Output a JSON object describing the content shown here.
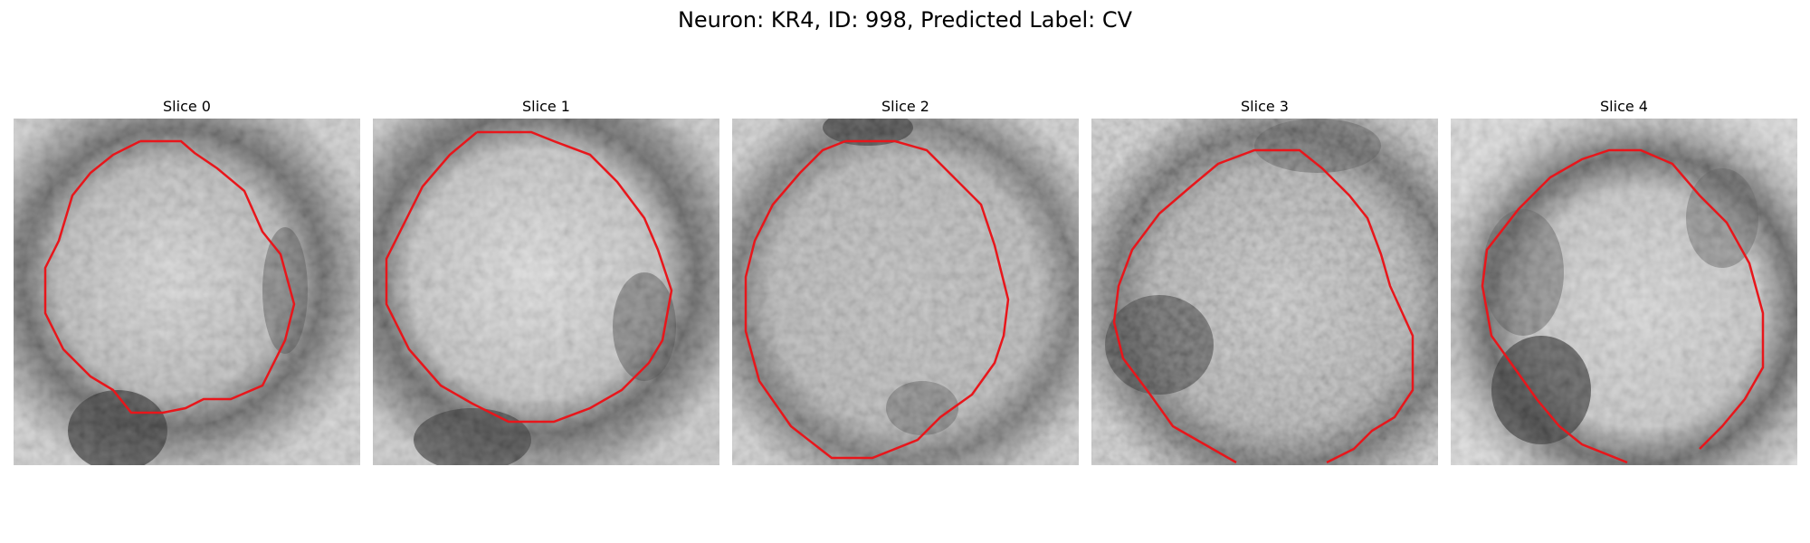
{
  "figure": {
    "title": "Neuron: KR4, ID: 998, Predicted Label: CV",
    "panels": [
      {
        "title": "Slice 0"
      },
      {
        "title": "Slice 1"
      },
      {
        "title": "Slice 2"
      },
      {
        "title": "Slice 3"
      },
      {
        "title": "Slice 4"
      }
    ],
    "colors": {
      "contour": "#e8161b",
      "background": "#ffffff"
    },
    "image_colormap": "grayscale"
  }
}
